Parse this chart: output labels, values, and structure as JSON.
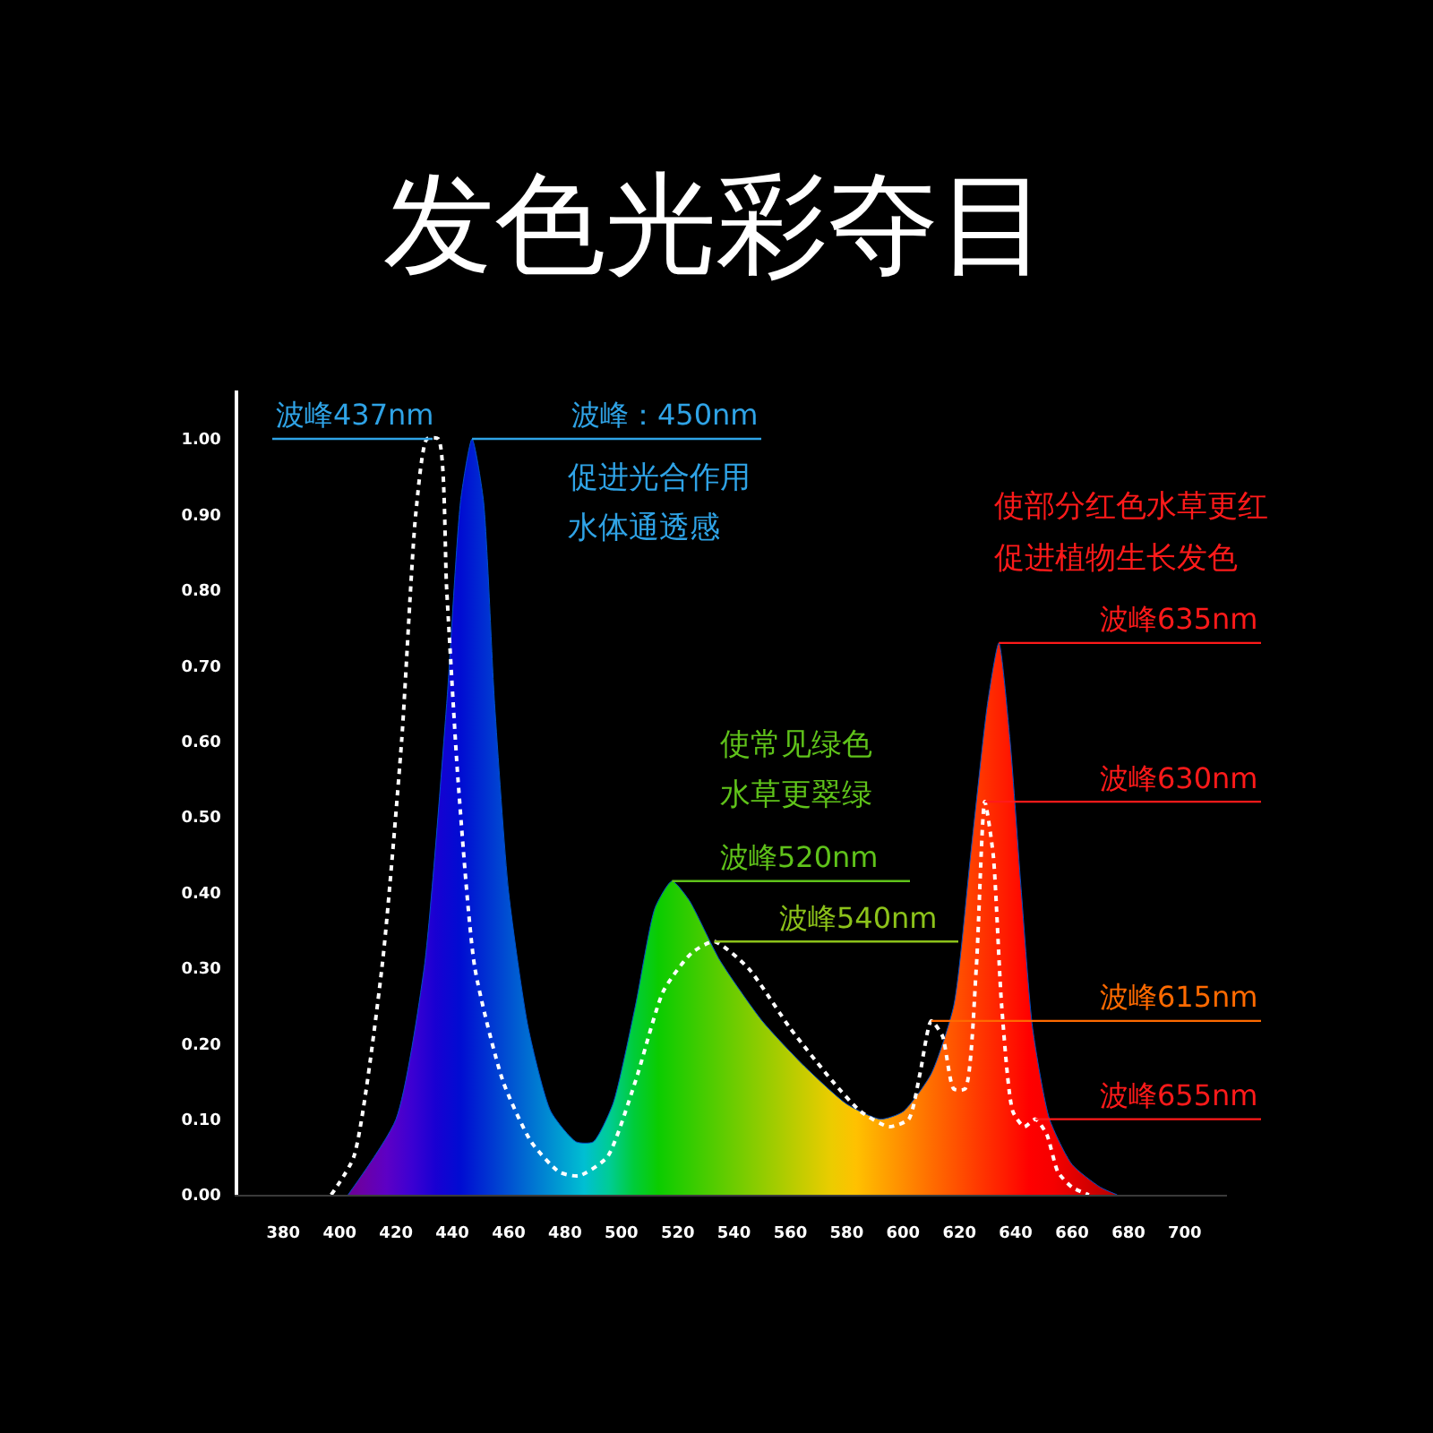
{
  "chart_data": {
    "type": "area",
    "title": "发色光彩夺目",
    "xlim": [
      364,
      715
    ],
    "ylim": [
      0,
      1.064
    ],
    "xticks": [
      380,
      400,
      420,
      440,
      460,
      480,
      500,
      520,
      540,
      560,
      580,
      600,
      620,
      640,
      660,
      680,
      700
    ],
    "yticks": [
      {
        "value": 0,
        "label": "0.00"
      },
      {
        "value": 0.1,
        "label": "0.10"
      },
      {
        "value": 0.2,
        "label": "0.20"
      },
      {
        "value": 0.3,
        "label": "0.30"
      },
      {
        "value": 0.4,
        "label": "0.40"
      },
      {
        "value": 0.5,
        "label": "0.50"
      },
      {
        "value": 0.6,
        "label": "0.60"
      },
      {
        "value": 0.7,
        "label": "0.70"
      },
      {
        "value": 0.8,
        "label": "0.80"
      },
      {
        "value": 0.9,
        "label": "0.90"
      },
      {
        "value": 1.0,
        "label": "1.00"
      }
    ],
    "grid": false,
    "marker": "none",
    "series": [
      {
        "color": "#0050c8",
        "x": [
          403,
          420,
          430,
          438,
          443,
          447,
          451,
          455,
          460,
          467,
          475,
          484,
          490,
          497,
          505,
          512,
          518,
          524,
          535,
          550,
          565,
          580,
          592,
          600,
          610,
          618,
          624,
          630,
          634,
          638,
          642,
          646,
          652,
          660,
          670,
          676
        ],
        "values": [
          0,
          0.1,
          0.3,
          0.65,
          0.92,
          1.0,
          0.92,
          0.65,
          0.4,
          0.22,
          0.11,
          0.07,
          0.07,
          0.12,
          0.25,
          0.38,
          0.415,
          0.39,
          0.31,
          0.23,
          0.17,
          0.12,
          0.1,
          0.11,
          0.16,
          0.25,
          0.45,
          0.65,
          0.73,
          0.6,
          0.4,
          0.22,
          0.1,
          0.04,
          0.01,
          0
        ]
      },
      {
        "type": "line",
        "line_style": "dotted",
        "color": "#ffffff",
        "x": [
          397,
          405,
          415,
          422,
          427,
          431,
          435,
          438,
          442,
          448,
          458,
          468,
          478,
          485,
          495,
          505,
          515,
          525,
          533,
          545,
          560,
          575,
          585,
          595,
          602,
          606,
          610,
          614,
          618,
          622,
          626,
          629,
          632,
          635,
          639,
          643,
          647,
          651,
          655,
          660,
          666
        ],
        "values": [
          0,
          0.05,
          0.3,
          0.6,
          0.9,
          1.0,
          1.0,
          0.8,
          0.55,
          0.3,
          0.15,
          0.07,
          0.03,
          0.025,
          0.05,
          0.15,
          0.27,
          0.32,
          0.335,
          0.3,
          0.22,
          0.15,
          0.11,
          0.09,
          0.1,
          0.16,
          0.23,
          0.21,
          0.14,
          0.14,
          0.3,
          0.52,
          0.45,
          0.25,
          0.11,
          0.09,
          0.1,
          0.08,
          0.03,
          0.01,
          0
        ]
      }
    ],
    "annotations": [
      {
        "text": "波峰437nm",
        "x": 433,
        "y": 1.0
      },
      {
        "text": "波峰：450nm",
        "x": 447,
        "y": 1.0
      },
      "促进光合作用",
      "水体通透感",
      "使常见绿色",
      "水草更翠绿",
      {
        "text": "波峰520nm",
        "x": 518,
        "y": 0.415
      },
      {
        "text": "波峰540nm",
        "x": 533,
        "y": 0.335
      },
      "使部分红色水草更红",
      "促进植物生长发色",
      {
        "text": "波峰635nm",
        "x": 634,
        "y": 0.73
      },
      {
        "text": "波峰630nm",
        "x": 629,
        "y": 0.52
      },
      {
        "text": "波峰615nm",
        "x": 610,
        "y": 0.23
      },
      {
        "text": "波峰655nm",
        "x": 647,
        "y": 0.1
      }
    ]
  }
}
